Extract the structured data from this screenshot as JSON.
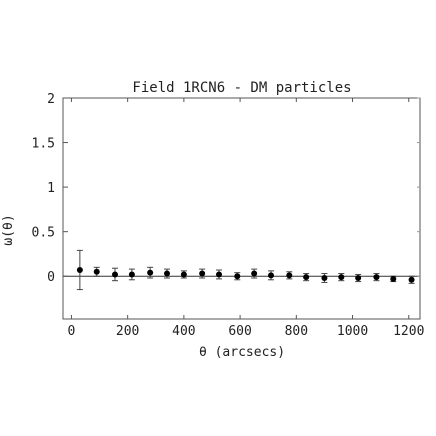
{
  "chart_data": {
    "type": "scatter",
    "title": "Field 1RCN6 - DM particles",
    "xlabel": "θ (arcsecs)",
    "ylabel": "ω(θ)",
    "xlim": [
      -30,
      1240
    ],
    "ylim": [
      -0.48,
      2.0
    ],
    "xticks": [
      0,
      200,
      400,
      600,
      800,
      1000,
      1200
    ],
    "yticks": [
      0,
      0.5,
      1,
      1.5,
      2
    ],
    "xtick_labels": [
      "0",
      "200",
      "400",
      "600",
      "800",
      "1000",
      "1200"
    ],
    "ytick_labels": [
      "0",
      "0.5",
      "1",
      "1.5",
      "2"
    ],
    "grid": false,
    "reference_line_y": 0,
    "series": [
      {
        "x": [
          30,
          90,
          155,
          215,
          280,
          340,
          400,
          465,
          525,
          590,
          650,
          710,
          775,
          835,
          900,
          960,
          1020,
          1085,
          1145,
          1210
        ],
        "y": [
          0.07,
          0.05,
          0.02,
          0.02,
          0.04,
          0.03,
          0.02,
          0.03,
          0.02,
          0.0,
          0.03,
          0.01,
          0.01,
          -0.01,
          -0.02,
          -0.01,
          -0.02,
          -0.01,
          -0.03,
          -0.04
        ],
        "err": [
          0.22,
          0.05,
          0.07,
          0.06,
          0.06,
          0.05,
          0.04,
          0.05,
          0.05,
          0.04,
          0.05,
          0.05,
          0.04,
          0.04,
          0.05,
          0.04,
          0.04,
          0.04,
          0.03,
          0.04
        ]
      }
    ]
  }
}
